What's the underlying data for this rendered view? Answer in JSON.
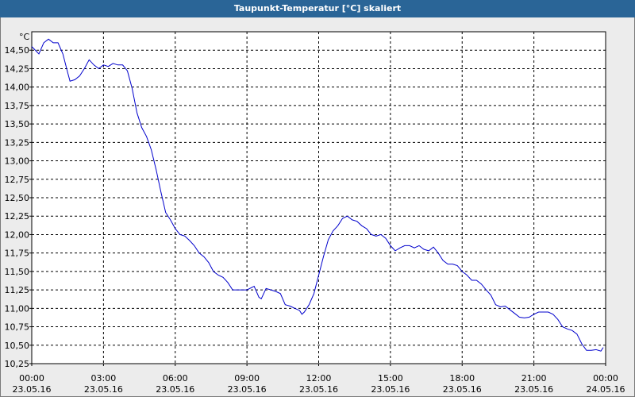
{
  "window": {
    "title": "Taupunkt-Temperatur [°C] skaliert"
  },
  "colors": {
    "title_bar": "#2a6597",
    "line": "#0000cc",
    "grid": "#000000",
    "background": "#ececec"
  },
  "chart_data": {
    "type": "line",
    "title": "Taupunkt-Temperatur [°C] skaliert",
    "ylabel": "°C",
    "xlabel": "",
    "ylim": [
      10.25,
      14.75
    ],
    "xlim": [
      0,
      24
    ],
    "grid": true,
    "yticks": [
      "10,25",
      "10,50",
      "10,75",
      "11,00",
      "11,25",
      "11,50",
      "11,75",
      "12,00",
      "12,25",
      "12,50",
      "12,75",
      "13,00",
      "13,25",
      "13,50",
      "13,75",
      "14,00",
      "14,25",
      "14,50"
    ],
    "xticks": [
      {
        "time": "00:00",
        "date": "23.05.16"
      },
      {
        "time": "03:00",
        "date": "23.05.16"
      },
      {
        "time": "06:00",
        "date": "23.05.16"
      },
      {
        "time": "09:00",
        "date": "23.05.16"
      },
      {
        "time": "12:00",
        "date": "23.05.16"
      },
      {
        "time": "15:00",
        "date": "23.05.16"
      },
      {
        "time": "18:00",
        "date": "23.05.16"
      },
      {
        "time": "21:00",
        "date": "23.05.16"
      },
      {
        "time": "00:00",
        "date": "24.05.16"
      }
    ],
    "series": [
      {
        "values": [
          [
            0.0,
            14.55
          ],
          [
            0.3,
            14.45
          ],
          [
            0.5,
            14.6
          ],
          [
            0.7,
            14.65
          ],
          [
            0.9,
            14.6
          ],
          [
            1.1,
            14.6
          ],
          [
            1.3,
            14.45
          ],
          [
            1.5,
            14.2
          ],
          [
            1.6,
            14.08
          ],
          [
            1.8,
            14.1
          ],
          [
            2.0,
            14.15
          ],
          [
            2.2,
            14.25
          ],
          [
            2.4,
            14.37
          ],
          [
            2.6,
            14.3
          ],
          [
            2.8,
            14.25
          ],
          [
            3.0,
            14.3
          ],
          [
            3.2,
            14.28
          ],
          [
            3.4,
            14.32
          ],
          [
            3.6,
            14.3
          ],
          [
            3.8,
            14.3
          ],
          [
            4.0,
            14.22
          ],
          [
            4.2,
            13.98
          ],
          [
            4.4,
            13.65
          ],
          [
            4.6,
            13.45
          ],
          [
            4.8,
            13.33
          ],
          [
            5.0,
            13.15
          ],
          [
            5.2,
            12.88
          ],
          [
            5.4,
            12.58
          ],
          [
            5.6,
            12.3
          ],
          [
            5.8,
            12.2
          ],
          [
            6.0,
            12.08
          ],
          [
            6.2,
            12.0
          ],
          [
            6.4,
            11.98
          ],
          [
            6.6,
            11.92
          ],
          [
            6.8,
            11.85
          ],
          [
            7.0,
            11.75
          ],
          [
            7.2,
            11.7
          ],
          [
            7.4,
            11.62
          ],
          [
            7.6,
            11.5
          ],
          [
            7.8,
            11.45
          ],
          [
            8.0,
            11.42
          ],
          [
            8.2,
            11.35
          ],
          [
            8.4,
            11.25
          ],
          [
            8.6,
            11.25
          ],
          [
            8.8,
            11.25
          ],
          [
            9.0,
            11.25
          ],
          [
            9.3,
            11.3
          ],
          [
            9.5,
            11.15
          ],
          [
            9.6,
            11.13
          ],
          [
            9.8,
            11.27
          ],
          [
            10.0,
            11.25
          ],
          [
            10.2,
            11.23
          ],
          [
            10.4,
            11.2
          ],
          [
            10.6,
            11.05
          ],
          [
            10.8,
            11.03
          ],
          [
            11.0,
            11.0
          ],
          [
            11.2,
            10.97
          ],
          [
            11.3,
            10.92
          ],
          [
            11.4,
            10.95
          ],
          [
            11.6,
            11.05
          ],
          [
            11.8,
            11.2
          ],
          [
            12.0,
            11.45
          ],
          [
            12.2,
            11.7
          ],
          [
            12.4,
            11.93
          ],
          [
            12.6,
            12.05
          ],
          [
            12.8,
            12.12
          ],
          [
            13.0,
            12.22
          ],
          [
            13.2,
            12.25
          ],
          [
            13.4,
            12.2
          ],
          [
            13.6,
            12.18
          ],
          [
            13.8,
            12.12
          ],
          [
            14.0,
            12.08
          ],
          [
            14.2,
            12.0
          ],
          [
            14.4,
            11.98
          ],
          [
            14.6,
            12.0
          ],
          [
            14.8,
            11.95
          ],
          [
            15.0,
            11.85
          ],
          [
            15.2,
            11.78
          ],
          [
            15.4,
            11.82
          ],
          [
            15.6,
            11.85
          ],
          [
            15.8,
            11.85
          ],
          [
            16.0,
            11.82
          ],
          [
            16.2,
            11.85
          ],
          [
            16.4,
            11.8
          ],
          [
            16.6,
            11.78
          ],
          [
            16.8,
            11.83
          ],
          [
            17.0,
            11.75
          ],
          [
            17.2,
            11.65
          ],
          [
            17.4,
            11.6
          ],
          [
            17.6,
            11.6
          ],
          [
            17.8,
            11.58
          ],
          [
            18.0,
            11.5
          ],
          [
            18.2,
            11.45
          ],
          [
            18.4,
            11.38
          ],
          [
            18.6,
            11.38
          ],
          [
            18.8,
            11.33
          ],
          [
            19.0,
            11.25
          ],
          [
            19.2,
            11.18
          ],
          [
            19.4,
            11.05
          ],
          [
            19.6,
            11.02
          ],
          [
            19.8,
            11.03
          ],
          [
            20.0,
            10.98
          ],
          [
            20.2,
            10.93
          ],
          [
            20.4,
            10.88
          ],
          [
            20.6,
            10.87
          ],
          [
            20.8,
            10.88
          ],
          [
            21.0,
            10.92
          ],
          [
            21.2,
            10.95
          ],
          [
            21.4,
            10.95
          ],
          [
            21.6,
            10.95
          ],
          [
            21.8,
            10.92
          ],
          [
            22.0,
            10.85
          ],
          [
            22.2,
            10.75
          ],
          [
            22.4,
            10.72
          ],
          [
            22.6,
            10.7
          ],
          [
            22.8,
            10.65
          ],
          [
            23.0,
            10.52
          ],
          [
            23.2,
            10.43
          ],
          [
            23.4,
            10.43
          ],
          [
            23.6,
            10.44
          ],
          [
            23.8,
            10.42
          ],
          [
            23.9,
            10.47
          ]
        ]
      }
    ]
  }
}
